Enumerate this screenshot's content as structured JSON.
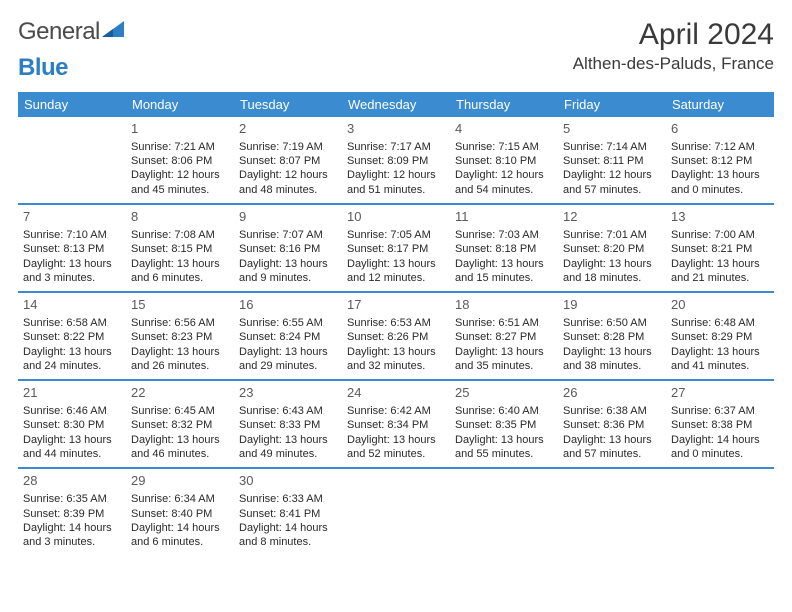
{
  "logo": {
    "text1": "General",
    "text2": "Blue"
  },
  "title": "April 2024",
  "location": "Althen-des-Paluds, France",
  "colors": {
    "header_bg": "#3a8bd0",
    "row_border": "#3a8bd0",
    "logo_blue": "#2b7fc4",
    "logo_gray": "#4a4a4a"
  },
  "weekdays": [
    "Sunday",
    "Monday",
    "Tuesday",
    "Wednesday",
    "Thursday",
    "Friday",
    "Saturday"
  ],
  "weeks": [
    [
      {
        "day": "",
        "sunrise": "",
        "sunset": "",
        "daylight": ""
      },
      {
        "day": "1",
        "sunrise": "Sunrise: 7:21 AM",
        "sunset": "Sunset: 8:06 PM",
        "daylight": "Daylight: 12 hours and 45 minutes."
      },
      {
        "day": "2",
        "sunrise": "Sunrise: 7:19 AM",
        "sunset": "Sunset: 8:07 PM",
        "daylight": "Daylight: 12 hours and 48 minutes."
      },
      {
        "day": "3",
        "sunrise": "Sunrise: 7:17 AM",
        "sunset": "Sunset: 8:09 PM",
        "daylight": "Daylight: 12 hours and 51 minutes."
      },
      {
        "day": "4",
        "sunrise": "Sunrise: 7:15 AM",
        "sunset": "Sunset: 8:10 PM",
        "daylight": "Daylight: 12 hours and 54 minutes."
      },
      {
        "day": "5",
        "sunrise": "Sunrise: 7:14 AM",
        "sunset": "Sunset: 8:11 PM",
        "daylight": "Daylight: 12 hours and 57 minutes."
      },
      {
        "day": "6",
        "sunrise": "Sunrise: 7:12 AM",
        "sunset": "Sunset: 8:12 PM",
        "daylight": "Daylight: 13 hours and 0 minutes."
      }
    ],
    [
      {
        "day": "7",
        "sunrise": "Sunrise: 7:10 AM",
        "sunset": "Sunset: 8:13 PM",
        "daylight": "Daylight: 13 hours and 3 minutes."
      },
      {
        "day": "8",
        "sunrise": "Sunrise: 7:08 AM",
        "sunset": "Sunset: 8:15 PM",
        "daylight": "Daylight: 13 hours and 6 minutes."
      },
      {
        "day": "9",
        "sunrise": "Sunrise: 7:07 AM",
        "sunset": "Sunset: 8:16 PM",
        "daylight": "Daylight: 13 hours and 9 minutes."
      },
      {
        "day": "10",
        "sunrise": "Sunrise: 7:05 AM",
        "sunset": "Sunset: 8:17 PM",
        "daylight": "Daylight: 13 hours and 12 minutes."
      },
      {
        "day": "11",
        "sunrise": "Sunrise: 7:03 AM",
        "sunset": "Sunset: 8:18 PM",
        "daylight": "Daylight: 13 hours and 15 minutes."
      },
      {
        "day": "12",
        "sunrise": "Sunrise: 7:01 AM",
        "sunset": "Sunset: 8:20 PM",
        "daylight": "Daylight: 13 hours and 18 minutes."
      },
      {
        "day": "13",
        "sunrise": "Sunrise: 7:00 AM",
        "sunset": "Sunset: 8:21 PM",
        "daylight": "Daylight: 13 hours and 21 minutes."
      }
    ],
    [
      {
        "day": "14",
        "sunrise": "Sunrise: 6:58 AM",
        "sunset": "Sunset: 8:22 PM",
        "daylight": "Daylight: 13 hours and 24 minutes."
      },
      {
        "day": "15",
        "sunrise": "Sunrise: 6:56 AM",
        "sunset": "Sunset: 8:23 PM",
        "daylight": "Daylight: 13 hours and 26 minutes."
      },
      {
        "day": "16",
        "sunrise": "Sunrise: 6:55 AM",
        "sunset": "Sunset: 8:24 PM",
        "daylight": "Daylight: 13 hours and 29 minutes."
      },
      {
        "day": "17",
        "sunrise": "Sunrise: 6:53 AM",
        "sunset": "Sunset: 8:26 PM",
        "daylight": "Daylight: 13 hours and 32 minutes."
      },
      {
        "day": "18",
        "sunrise": "Sunrise: 6:51 AM",
        "sunset": "Sunset: 8:27 PM",
        "daylight": "Daylight: 13 hours and 35 minutes."
      },
      {
        "day": "19",
        "sunrise": "Sunrise: 6:50 AM",
        "sunset": "Sunset: 8:28 PM",
        "daylight": "Daylight: 13 hours and 38 minutes."
      },
      {
        "day": "20",
        "sunrise": "Sunrise: 6:48 AM",
        "sunset": "Sunset: 8:29 PM",
        "daylight": "Daylight: 13 hours and 41 minutes."
      }
    ],
    [
      {
        "day": "21",
        "sunrise": "Sunrise: 6:46 AM",
        "sunset": "Sunset: 8:30 PM",
        "daylight": "Daylight: 13 hours and 44 minutes."
      },
      {
        "day": "22",
        "sunrise": "Sunrise: 6:45 AM",
        "sunset": "Sunset: 8:32 PM",
        "daylight": "Daylight: 13 hours and 46 minutes."
      },
      {
        "day": "23",
        "sunrise": "Sunrise: 6:43 AM",
        "sunset": "Sunset: 8:33 PM",
        "daylight": "Daylight: 13 hours and 49 minutes."
      },
      {
        "day": "24",
        "sunrise": "Sunrise: 6:42 AM",
        "sunset": "Sunset: 8:34 PM",
        "daylight": "Daylight: 13 hours and 52 minutes."
      },
      {
        "day": "25",
        "sunrise": "Sunrise: 6:40 AM",
        "sunset": "Sunset: 8:35 PM",
        "daylight": "Daylight: 13 hours and 55 minutes."
      },
      {
        "day": "26",
        "sunrise": "Sunrise: 6:38 AM",
        "sunset": "Sunset: 8:36 PM",
        "daylight": "Daylight: 13 hours and 57 minutes."
      },
      {
        "day": "27",
        "sunrise": "Sunrise: 6:37 AM",
        "sunset": "Sunset: 8:38 PM",
        "daylight": "Daylight: 14 hours and 0 minutes."
      }
    ],
    [
      {
        "day": "28",
        "sunrise": "Sunrise: 6:35 AM",
        "sunset": "Sunset: 8:39 PM",
        "daylight": "Daylight: 14 hours and 3 minutes."
      },
      {
        "day": "29",
        "sunrise": "Sunrise: 6:34 AM",
        "sunset": "Sunset: 8:40 PM",
        "daylight": "Daylight: 14 hours and 6 minutes."
      },
      {
        "day": "30",
        "sunrise": "Sunrise: 6:33 AM",
        "sunset": "Sunset: 8:41 PM",
        "daylight": "Daylight: 14 hours and 8 minutes."
      },
      {
        "day": "",
        "sunrise": "",
        "sunset": "",
        "daylight": ""
      },
      {
        "day": "",
        "sunrise": "",
        "sunset": "",
        "daylight": ""
      },
      {
        "day": "",
        "sunrise": "",
        "sunset": "",
        "daylight": ""
      },
      {
        "day": "",
        "sunrise": "",
        "sunset": "",
        "daylight": ""
      }
    ]
  ]
}
